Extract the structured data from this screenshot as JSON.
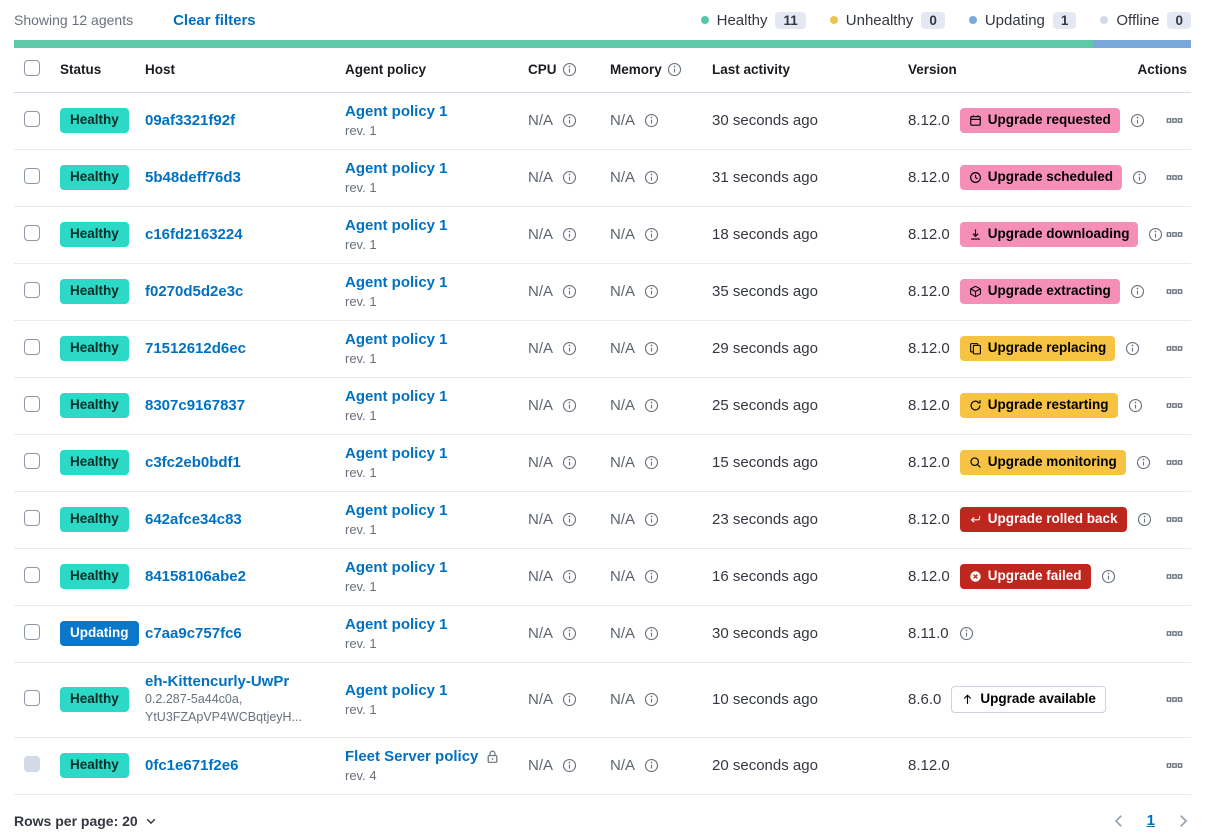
{
  "header": {
    "showing": "Showing 12 agents",
    "clear_filters": "Clear filters",
    "legend": [
      {
        "label": "Healthy",
        "count": "11",
        "color": "#54c8a2"
      },
      {
        "label": "Unhealthy",
        "count": "0",
        "color": "#eac54f"
      },
      {
        "label": "Updating",
        "count": "1",
        "color": "#79aad9"
      },
      {
        "label": "Offline",
        "count": "0",
        "color": "#d3dae6"
      }
    ]
  },
  "health_bar": {
    "segments": [
      {
        "status": "healthy",
        "color": "#5ec9a6",
        "percent": 91.67
      },
      {
        "status": "updating",
        "color": "#7aa7da",
        "percent": 8.33
      }
    ]
  },
  "colors": {
    "link": "#0071c2",
    "healthy_badge": "#2cd9c6",
    "updating_badge": "#0b77c8",
    "upgrade_pink": "#f58fb7",
    "upgrade_yellow": "#f6c342",
    "upgrade_red": "#bd271e"
  },
  "table": {
    "columns": [
      {
        "label": "Status"
      },
      {
        "label": "Host"
      },
      {
        "label": "Agent policy"
      },
      {
        "label": "CPU",
        "info": true
      },
      {
        "label": "Memory",
        "info": true
      },
      {
        "label": "Last activity"
      },
      {
        "label": "Version"
      },
      {
        "label": "Actions"
      }
    ],
    "rows": [
      {
        "status": "Healthy",
        "status_type": "healthy",
        "host": "09af3321f92f",
        "host_sub": [],
        "policy": "Agent policy 1",
        "policy_rev": "rev. 1",
        "policy_locked": false,
        "cpu": "N/A",
        "memory": "N/A",
        "last_activity": "30 seconds ago",
        "version": "8.12.0",
        "upgrade_badge": {
          "label": "Upgrade requested",
          "icon": "calendar-icon",
          "style": "pink"
        },
        "badge_info_icon": true,
        "version_info_icon": false,
        "checkbox_disabled": false
      },
      {
        "status": "Healthy",
        "status_type": "healthy",
        "host": "5b48deff76d3",
        "host_sub": [],
        "policy": "Agent policy 1",
        "policy_rev": "rev. 1",
        "policy_locked": false,
        "cpu": "N/A",
        "memory": "N/A",
        "last_activity": "31 seconds ago",
        "version": "8.12.0",
        "upgrade_badge": {
          "label": "Upgrade scheduled",
          "icon": "clock-icon",
          "style": "pink"
        },
        "badge_info_icon": true,
        "version_info_icon": false,
        "checkbox_disabled": false
      },
      {
        "status": "Healthy",
        "status_type": "healthy",
        "host": "c16fd2163224",
        "host_sub": [],
        "policy": "Agent policy 1",
        "policy_rev": "rev. 1",
        "policy_locked": false,
        "cpu": "N/A",
        "memory": "N/A",
        "last_activity": "18 seconds ago",
        "version": "8.12.0",
        "upgrade_badge": {
          "label": "Upgrade downloading",
          "icon": "download-icon",
          "style": "pink"
        },
        "badge_info_icon": true,
        "version_info_icon": false,
        "checkbox_disabled": false
      },
      {
        "status": "Healthy",
        "status_type": "healthy",
        "host": "f0270d5d2e3c",
        "host_sub": [],
        "policy": "Agent policy 1",
        "policy_rev": "rev. 1",
        "policy_locked": false,
        "cpu": "N/A",
        "memory": "N/A",
        "last_activity": "35 seconds ago",
        "version": "8.12.0",
        "upgrade_badge": {
          "label": "Upgrade extracting",
          "icon": "package-icon",
          "style": "pink"
        },
        "badge_info_icon": true,
        "version_info_icon": false,
        "checkbox_disabled": false
      },
      {
        "status": "Healthy",
        "status_type": "healthy",
        "host": "71512612d6ec",
        "host_sub": [],
        "policy": "Agent policy 1",
        "policy_rev": "rev. 1",
        "policy_locked": false,
        "cpu": "N/A",
        "memory": "N/A",
        "last_activity": "29 seconds ago",
        "version": "8.12.0",
        "upgrade_badge": {
          "label": "Upgrade replacing",
          "icon": "copy-icon",
          "style": "yellow"
        },
        "badge_info_icon": true,
        "version_info_icon": false,
        "checkbox_disabled": false
      },
      {
        "status": "Healthy",
        "status_type": "healthy",
        "host": "8307c9167837",
        "host_sub": [],
        "policy": "Agent policy 1",
        "policy_rev": "rev. 1",
        "policy_locked": false,
        "cpu": "N/A",
        "memory": "N/A",
        "last_activity": "25 seconds ago",
        "version": "8.12.0",
        "upgrade_badge": {
          "label": "Upgrade restarting",
          "icon": "refresh-icon",
          "style": "yellow"
        },
        "badge_info_icon": true,
        "version_info_icon": false,
        "checkbox_disabled": false
      },
      {
        "status": "Healthy",
        "status_type": "healthy",
        "host": "c3fc2eb0bdf1",
        "host_sub": [],
        "policy": "Agent policy 1",
        "policy_rev": "rev. 1",
        "policy_locked": false,
        "cpu": "N/A",
        "memory": "N/A",
        "last_activity": "15 seconds ago",
        "version": "8.12.0",
        "upgrade_badge": {
          "label": "Upgrade monitoring",
          "icon": "inspect-icon",
          "style": "yellow"
        },
        "badge_info_icon": true,
        "version_info_icon": false,
        "checkbox_disabled": false
      },
      {
        "status": "Healthy",
        "status_type": "healthy",
        "host": "642afce34c83",
        "host_sub": [],
        "policy": "Agent policy 1",
        "policy_rev": "rev. 1",
        "policy_locked": false,
        "cpu": "N/A",
        "memory": "N/A",
        "last_activity": "23 seconds ago",
        "version": "8.12.0",
        "upgrade_badge": {
          "label": "Upgrade rolled back",
          "icon": "return-icon",
          "style": "red"
        },
        "badge_info_icon": true,
        "version_info_icon": false,
        "checkbox_disabled": false
      },
      {
        "status": "Healthy",
        "status_type": "healthy",
        "host": "84158106abe2",
        "host_sub": [],
        "policy": "Agent policy 1",
        "policy_rev": "rev. 1",
        "policy_locked": false,
        "cpu": "N/A",
        "memory": "N/A",
        "last_activity": "16 seconds ago",
        "version": "8.12.0",
        "upgrade_badge": {
          "label": "Upgrade failed",
          "icon": "cross-in-circle-icon",
          "style": "red"
        },
        "badge_info_icon": true,
        "version_info_icon": false,
        "checkbox_disabled": false
      },
      {
        "status": "Updating",
        "status_type": "updating",
        "host": "c7aa9c757fc6",
        "host_sub": [],
        "policy": "Agent policy 1",
        "policy_rev": "rev. 1",
        "policy_locked": false,
        "cpu": "N/A",
        "memory": "N/A",
        "last_activity": "30 seconds ago",
        "version": "8.11.0",
        "upgrade_badge": null,
        "badge_info_icon": false,
        "version_info_icon": true,
        "checkbox_disabled": false
      },
      {
        "status": "Healthy",
        "status_type": "healthy",
        "host": "eh-Kittencurly-UwPr",
        "host_sub": [
          "0.2.287-5a44c0a,",
          "YtU3FZApVP4WCBqtjeyH..."
        ],
        "policy": "Agent policy 1",
        "policy_rev": "rev. 1",
        "policy_locked": false,
        "cpu": "N/A",
        "memory": "N/A",
        "last_activity": "10 seconds ago",
        "version": "8.6.0",
        "upgrade_badge": {
          "label": "Upgrade available",
          "icon": "arrow-up-icon",
          "style": "hollow"
        },
        "badge_info_icon": false,
        "version_info_icon": false,
        "checkbox_disabled": false
      },
      {
        "status": "Healthy",
        "status_type": "healthy",
        "host": "0fc1e671f2e6",
        "host_sub": [],
        "policy": "Fleet Server policy",
        "policy_rev": "rev. 4",
        "policy_locked": true,
        "cpu": "N/A",
        "memory": "N/A",
        "last_activity": "20 seconds ago",
        "version": "8.12.0",
        "upgrade_badge": null,
        "badge_info_icon": false,
        "version_info_icon": false,
        "checkbox_disabled": true
      }
    ]
  },
  "footer": {
    "rows_per_page": "Rows per page: 20",
    "page": "1"
  }
}
